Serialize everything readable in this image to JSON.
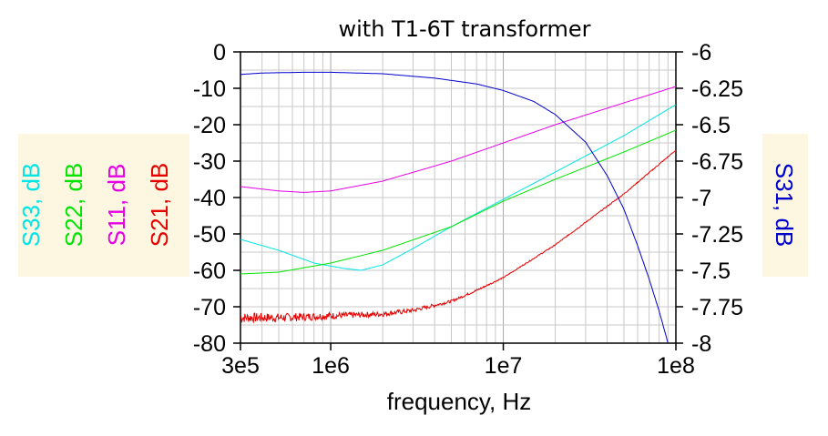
{
  "chart_data": {
    "type": "line",
    "title": "with T1-6T transformer",
    "xlabel": "frequency, Hz",
    "x_scale": "log",
    "xlim": [
      300000,
      100000000
    ],
    "x_ticks": [
      300000,
      1000000,
      10000000,
      100000000
    ],
    "x_tick_labels": [
      "3e5",
      "1e6",
      "1e7",
      "1e8"
    ],
    "ylim_left": [
      -80,
      0
    ],
    "y_ticks_left": [
      0,
      -10,
      -20,
      -30,
      -40,
      -50,
      -60,
      -70,
      -80
    ],
    "y_tick_labels_left": [
      "0",
      "-10",
      "-20",
      "-30",
      "-40",
      "-50",
      "-60",
      "-70",
      "-80"
    ],
    "ylim_right": [
      -8,
      -6
    ],
    "y_ticks_right": [
      -6,
      -6.25,
      -6.5,
      -6.75,
      -7,
      -7.25,
      -7.5,
      -7.75,
      -8
    ],
    "y_tick_labels_right": [
      "-6",
      "-6.25",
      "-6.5",
      "-6.75",
      "-7",
      "-7.25",
      "-7.5",
      "-7.75",
      "-8"
    ],
    "grid": true,
    "left_axis_labels": [
      {
        "text": "S33, dB",
        "color": "#00e5e5"
      },
      {
        "text": "S22, dB",
        "color": "#00e600"
      },
      {
        "text": "S11, dB",
        "color": "#e600e6"
      },
      {
        "text": "S21, dB",
        "color": "#e60000"
      }
    ],
    "right_axis_label": {
      "text": "S31, dB",
      "color": "#0000cc"
    },
    "label_box_color": "#fdf7e1",
    "series": [
      {
        "name": "S33, dB",
        "axis": "left",
        "color": "#00e5e5",
        "points": [
          [
            300000,
            -51.5
          ],
          [
            500000,
            -54.5
          ],
          [
            800000,
            -58
          ],
          [
            1200000,
            -59.5
          ],
          [
            1500000,
            -60
          ],
          [
            2000000,
            -58.5
          ],
          [
            3000000,
            -54
          ],
          [
            5000000,
            -48
          ],
          [
            10000000,
            -40.5
          ],
          [
            20000000,
            -33
          ],
          [
            50000000,
            -23
          ],
          [
            100000000,
            -14.5
          ]
        ]
      },
      {
        "name": "S22, dB",
        "axis": "left",
        "color": "#00e600",
        "points": [
          [
            300000,
            -61
          ],
          [
            500000,
            -60.5
          ],
          [
            1000000,
            -58
          ],
          [
            2000000,
            -54.5
          ],
          [
            5000000,
            -48
          ],
          [
            10000000,
            -41
          ],
          [
            20000000,
            -35
          ],
          [
            50000000,
            -27.5
          ],
          [
            100000000,
            -21.5
          ]
        ]
      },
      {
        "name": "S11, dB",
        "axis": "left",
        "color": "#e600e6",
        "points": [
          [
            300000,
            -37
          ],
          [
            500000,
            -38.2
          ],
          [
            700000,
            -38.6
          ],
          [
            1000000,
            -38.2
          ],
          [
            2000000,
            -35.5
          ],
          [
            5000000,
            -30
          ],
          [
            10000000,
            -25
          ],
          [
            20000000,
            -20
          ],
          [
            50000000,
            -14
          ],
          [
            100000000,
            -9.5
          ]
        ]
      },
      {
        "name": "S21, dB",
        "axis": "left",
        "color": "#e60000",
        "noise": true,
        "points": [
          [
            300000,
            -73
          ],
          [
            500000,
            -73
          ],
          [
            1000000,
            -72.5
          ],
          [
            2000000,
            -72
          ],
          [
            3000000,
            -71
          ],
          [
            5000000,
            -68.5
          ],
          [
            7000000,
            -65.5
          ],
          [
            10000000,
            -62
          ],
          [
            20000000,
            -53
          ],
          [
            50000000,
            -39
          ],
          [
            100000000,
            -27
          ]
        ]
      },
      {
        "name": "S31, dB",
        "axis": "right",
        "color": "#0000cc",
        "points": [
          [
            300000,
            -6.155
          ],
          [
            400000,
            -6.145
          ],
          [
            700000,
            -6.14
          ],
          [
            1000000,
            -6.14
          ],
          [
            2000000,
            -6.15
          ],
          [
            4000000,
            -6.18
          ],
          [
            7000000,
            -6.22
          ],
          [
            10000000,
            -6.265
          ],
          [
            15000000,
            -6.34
          ],
          [
            20000000,
            -6.43
          ],
          [
            30000000,
            -6.62
          ],
          [
            40000000,
            -6.85
          ],
          [
            50000000,
            -7.08
          ],
          [
            60000000,
            -7.33
          ],
          [
            70000000,
            -7.56
          ],
          [
            80000000,
            -7.78
          ],
          [
            90000000,
            -8.0
          ]
        ]
      }
    ]
  }
}
